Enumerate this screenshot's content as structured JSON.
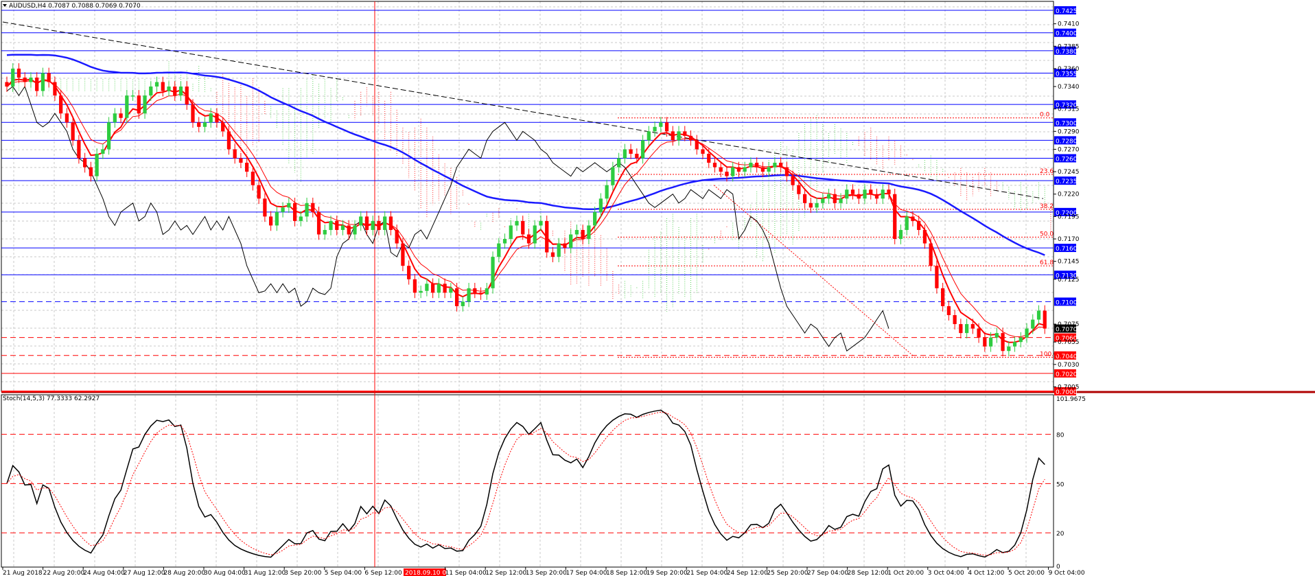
{
  "window": {
    "symbol_line": "AUDUSD,H4  0.7087 0.7088 0.7069 0.7070",
    "stoch_line": "Stoch(14,5,3) 77.3333 62.2927"
  },
  "colors": {
    "bull": "#2ecc40",
    "bear": "#ff0000",
    "level": "#0000ff",
    "ma_slow": "#1a1aff",
    "ma_fast": "#ff0000",
    "kijun": "#2a35ff",
    "chikou": "#000000",
    "cloud_bull": "#5ad35a",
    "cloud_bear": "#ff2a2a"
  },
  "chart_data": {
    "type": "candlestick",
    "symbol": "AUDUSD",
    "timeframe": "H4",
    "ohlc_header": {
      "open": 0.7087,
      "high": 0.7088,
      "low": 0.7069,
      "close": 0.707
    },
    "ylim": [
      0.7,
      0.7435
    ],
    "x_labels": [
      "21 Aug 2018",
      "22 Aug 20:00",
      "24 Aug 04:00",
      "27 Aug 12:00",
      "28 Aug 20:00",
      "30 Aug 04:00",
      "31 Aug 12:00",
      "3 Sep 20:00",
      "5 Sep 04:00",
      "6 Sep 12:00",
      "2018.09.10 08:00",
      "11 Sep 04:00",
      "12 Sep 12:00",
      "13 Sep 20:00",
      "17 Sep 04:00",
      "18 Sep 12:00",
      "19 Sep 20:00",
      "21 Sep 04:00",
      "24 Sep 12:00",
      "25 Sep 20:00",
      "27 Sep 04:00",
      "28 Sep 12:00",
      "1 Oct 20:00",
      "3 Oct 04:00",
      "4 Oct 12:00",
      "5 Oct 20:00",
      "9 Oct 04:00"
    ],
    "y_ticks": [
      "0.7410",
      "0.7385",
      "0.7360",
      "0.7340",
      "0.7315",
      "0.7290",
      "0.7270",
      "0.7245",
      "0.7220",
      "0.7195",
      "0.7170",
      "0.7145",
      "0.7125",
      "0.7075",
      "0.7055",
      "0.7030",
      "0.7005"
    ],
    "price_levels": [
      {
        "label": "0.7425",
        "value": 0.7425,
        "style": "solid",
        "color": "#0000ff"
      },
      {
        "label": "0.7400",
        "value": 0.74,
        "style": "solid",
        "color": "#0000ff"
      },
      {
        "label": "0.7380",
        "value": 0.738,
        "style": "solid",
        "color": "#0000ff"
      },
      {
        "label": "0.7355",
        "value": 0.7355,
        "style": "solid",
        "color": "#0000ff"
      },
      {
        "label": "0.7320",
        "value": 0.732,
        "style": "solid",
        "color": "#0000ff"
      },
      {
        "label": "0.7300",
        "value": 0.73,
        "style": "solid",
        "color": "#0000ff"
      },
      {
        "label": "0.7280",
        "value": 0.728,
        "style": "solid",
        "color": "#0000ff"
      },
      {
        "label": "0.7260",
        "value": 0.726,
        "style": "solid",
        "color": "#0000ff"
      },
      {
        "label": "0.7235",
        "value": 0.7235,
        "style": "solid",
        "color": "#0000ff"
      },
      {
        "label": "0.7200",
        "value": 0.72,
        "style": "solid",
        "color": "#0000ff"
      },
      {
        "label": "0.7160",
        "value": 0.716,
        "style": "solid",
        "color": "#0000ff"
      },
      {
        "label": "0.7130",
        "value": 0.713,
        "style": "solid",
        "color": "#0000ff"
      },
      {
        "label": "0.7100",
        "value": 0.71,
        "style": "dashed",
        "color": "#0000ff"
      },
      {
        "label": "0.7060",
        "value": 0.706,
        "style": "dashed",
        "color": "#ff0000"
      },
      {
        "label": "0.7040",
        "value": 0.704,
        "style": "dashed",
        "color": "#ff0000"
      },
      {
        "label": "0.7020",
        "value": 0.702,
        "style": "solid",
        "color": "#ff0000"
      },
      {
        "label": "0.7000",
        "value": 0.7,
        "style": "solid",
        "color": "#ff0000"
      }
    ],
    "current_price": {
      "label": "0.7070",
      "value": 0.707
    },
    "fib_levels": [
      {
        "label": "0.0",
        "value": 0.7305
      },
      {
        "label": "23.6",
        "value": 0.7242
      },
      {
        "label": "38.2",
        "value": 0.7203
      },
      {
        "label": "50.0",
        "value": 0.7172
      },
      {
        "label": "61.8",
        "value": 0.714
      },
      {
        "label": "100.0",
        "value": 0.7038
      }
    ],
    "closes": [
      0.734,
      0.736,
      0.735,
      0.7345,
      0.735,
      0.7335,
      0.7355,
      0.7345,
      0.733,
      0.731,
      0.73,
      0.728,
      0.726,
      0.725,
      0.724,
      0.7265,
      0.727,
      0.73,
      0.731,
      0.7305,
      0.733,
      0.733,
      0.731,
      0.733,
      0.734,
      0.7345,
      0.7335,
      0.734,
      0.733,
      0.734,
      0.732,
      0.73,
      0.7295,
      0.73,
      0.731,
      0.73,
      0.729,
      0.727,
      0.726,
      0.7255,
      0.7245,
      0.723,
      0.7215,
      0.7195,
      0.7185,
      0.72,
      0.7205,
      0.721,
      0.719,
      0.7195,
      0.721,
      0.72,
      0.7175,
      0.718,
      0.719,
      0.718,
      0.7185,
      0.7175,
      0.7185,
      0.7195,
      0.718,
      0.719,
      0.718,
      0.7195,
      0.718,
      0.7165,
      0.714,
      0.7125,
      0.711,
      0.7112,
      0.712,
      0.711,
      0.712,
      0.711,
      0.7115,
      0.7095,
      0.71,
      0.7115,
      0.711,
      0.7108,
      0.7115,
      0.715,
      0.7165,
      0.717,
      0.7185,
      0.719,
      0.7175,
      0.7165,
      0.7185,
      0.719,
      0.7155,
      0.715,
      0.7165,
      0.716,
      0.7175,
      0.718,
      0.717,
      0.7185,
      0.72,
      0.7215,
      0.723,
      0.725,
      0.726,
      0.727,
      0.7265,
      0.726,
      0.728,
      0.729,
      0.7295,
      0.73,
      0.729,
      0.728,
      0.729,
      0.7285,
      0.728,
      0.727,
      0.7265,
      0.7255,
      0.725,
      0.7245,
      0.724,
      0.725,
      0.7245,
      0.725,
      0.7255,
      0.725,
      0.7245,
      0.725,
      0.7255,
      0.725,
      0.724,
      0.723,
      0.722,
      0.721,
      0.7205,
      0.721,
      0.7215,
      0.722,
      0.721,
      0.7215,
      0.7225,
      0.722,
      0.7215,
      0.7225,
      0.722,
      0.7215,
      0.7225,
      0.722,
      0.717,
      0.718,
      0.7195,
      0.719,
      0.718,
      0.7165,
      0.714,
      0.7115,
      0.7095,
      0.7085,
      0.7075,
      0.7065,
      0.7075,
      0.707,
      0.706,
      0.705,
      0.706,
      0.7065,
      0.7045,
      0.705,
      0.7055,
      0.706,
      0.707,
      0.708,
      0.709,
      0.707
    ],
    "stoch": {
      "label": "Stoch(14,5,3)",
      "main": 77.3333,
      "signal": 62.2927,
      "ylim": [
        0,
        101.9675
      ],
      "levels": [
        80,
        50,
        20
      ],
      "tick_labels": [
        "101.9675",
        "80",
        "50",
        "20",
        "0"
      ]
    }
  }
}
